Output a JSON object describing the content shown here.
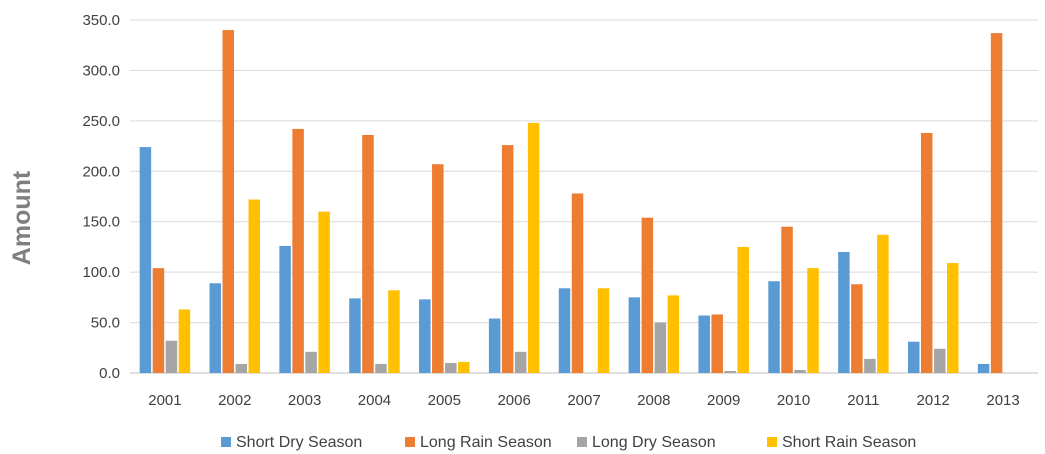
{
  "chart_data": {
    "type": "bar",
    "ylabel": "Amount",
    "ylim": [
      0,
      350
    ],
    "yticks": [
      "0.0",
      "50.0",
      "100.0",
      "150.0",
      "200.0",
      "250.0",
      "300.0",
      "350.0"
    ],
    "categories": [
      "2001",
      "2002",
      "2003",
      "2004",
      "2005",
      "2006",
      "2007",
      "2008",
      "2009",
      "2010",
      "2011",
      "2012",
      "2013"
    ],
    "grid": true,
    "legend": "bottom",
    "series": [
      {
        "name": "Short Dry Season",
        "color": "#5b9bd5",
        "values": [
          224,
          89,
          126,
          74,
          73,
          54,
          84,
          75,
          57,
          91,
          120,
          31,
          9
        ]
      },
      {
        "name": "Long Rain Season",
        "color": "#ed7d31",
        "values": [
          104,
          340,
          242,
          236,
          207,
          226,
          178,
          154,
          58,
          145,
          88,
          238,
          337
        ]
      },
      {
        "name": "Long Dry Season",
        "color": "#a5a5a5",
        "values": [
          32,
          9,
          21,
          9,
          10,
          21,
          0,
          50,
          2,
          3,
          14,
          24,
          0
        ]
      },
      {
        "name": "Short Rain Season",
        "color": "#ffc000",
        "values": [
          63,
          172,
          160,
          82,
          11,
          248,
          84,
          77,
          125,
          104,
          137,
          109,
          0
        ]
      }
    ]
  }
}
